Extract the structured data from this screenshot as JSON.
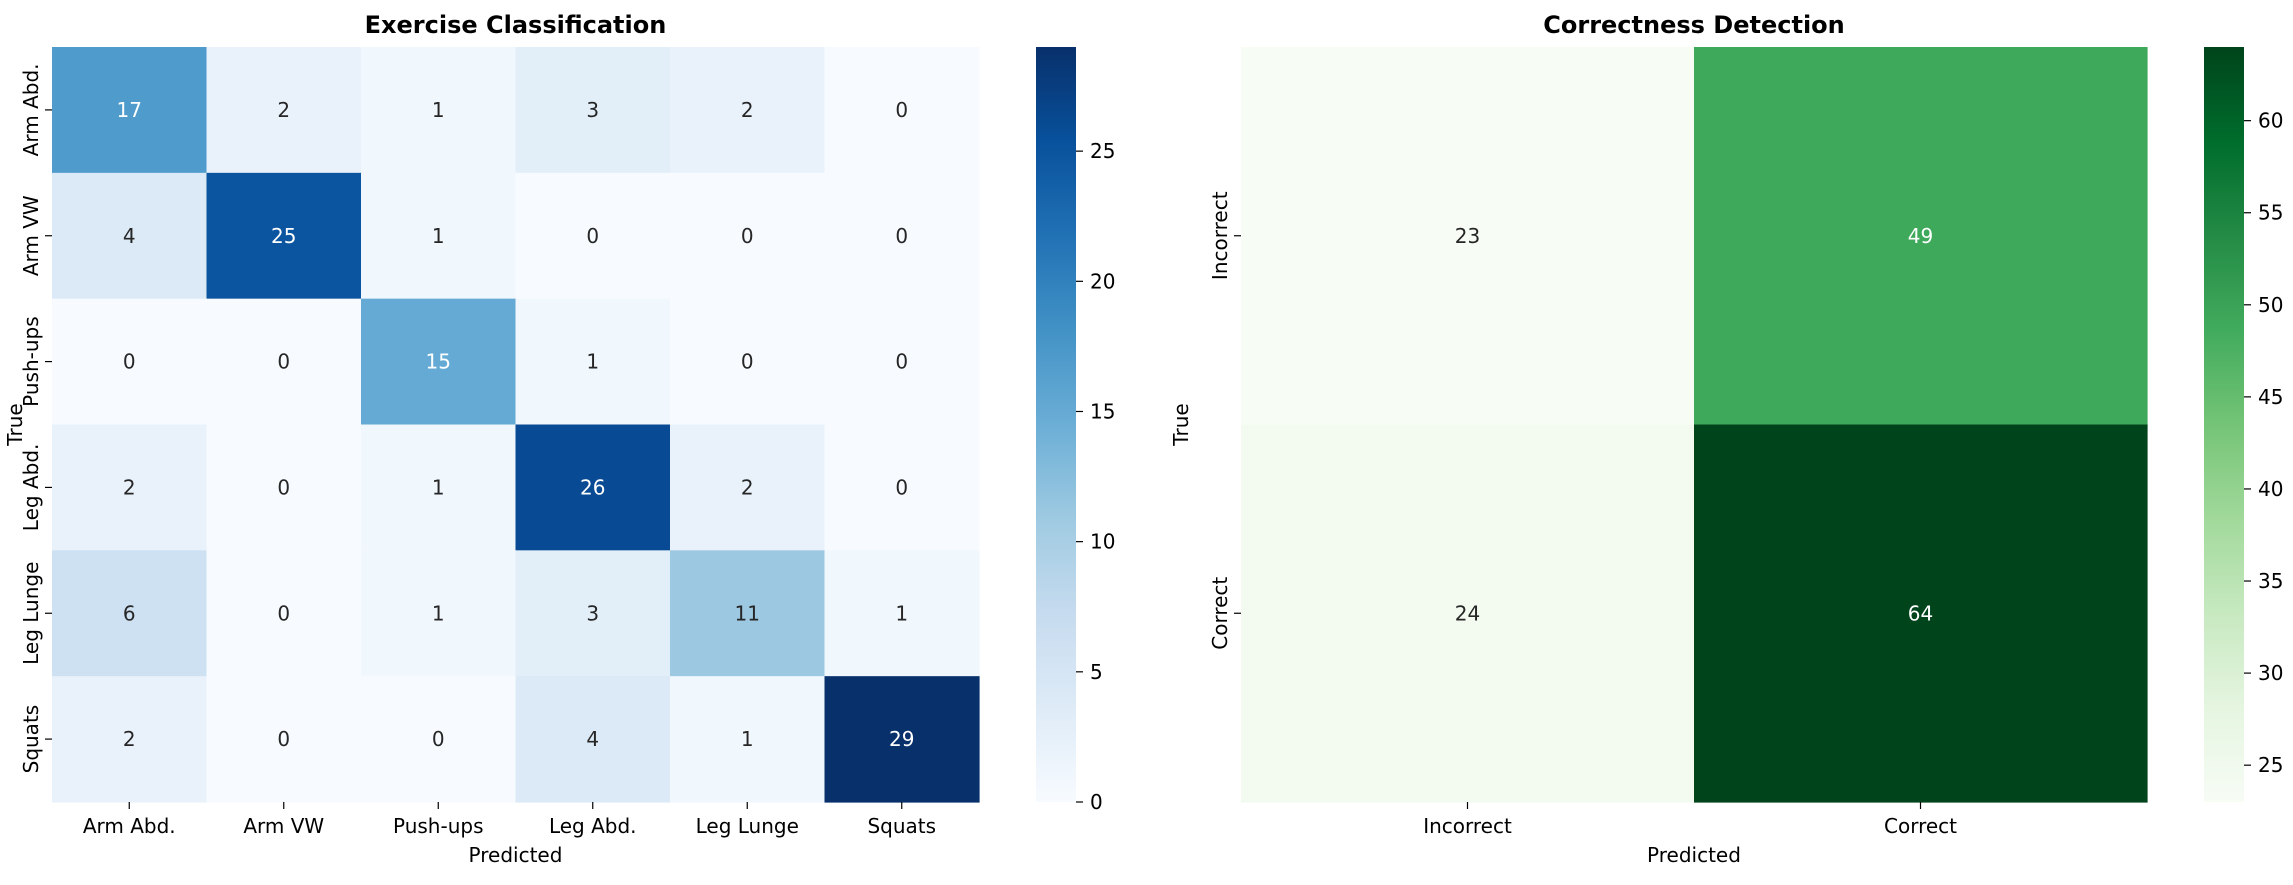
{
  "chart_data": [
    {
      "type": "heatmap",
      "title": "Exercise Classification",
      "xlabel": "Predicted",
      "ylabel": "True",
      "x_categories": [
        "Arm Abd.",
        "Arm VW",
        "Push-ups",
        "Leg Abd.",
        "Leg Lunge",
        "Squats"
      ],
      "y_categories": [
        "Arm Abd.",
        "Arm VW",
        "Push-ups",
        "Leg Abd.",
        "Leg Lunge",
        "Squats"
      ],
      "values": [
        [
          17,
          2,
          1,
          3,
          2,
          0
        ],
        [
          4,
          25,
          1,
          0,
          0,
          0
        ],
        [
          0,
          0,
          15,
          1,
          0,
          0
        ],
        [
          2,
          0,
          1,
          26,
          2,
          0
        ],
        [
          6,
          0,
          1,
          3,
          11,
          1
        ],
        [
          2,
          0,
          0,
          4,
          1,
          29
        ]
      ],
      "colormap": "Blues",
      "color_low": "#f7fbff",
      "color_high": "#08306b",
      "colorbar_range": [
        0,
        29
      ],
      "colorbar_ticks": [
        0,
        5,
        10,
        15,
        20,
        25
      ]
    },
    {
      "type": "heatmap",
      "title": "Correctness Detection",
      "xlabel": "Predicted",
      "ylabel": "True",
      "x_categories": [
        "Incorrect",
        "Correct"
      ],
      "y_categories": [
        "Incorrect",
        "Correct"
      ],
      "values": [
        [
          23,
          49
        ],
        [
          24,
          64
        ]
      ],
      "colormap": "Greens",
      "color_low": "#f7fcf5",
      "color_high": "#00441b",
      "colorbar_range": [
        23,
        64
      ],
      "colorbar_ticks": [
        25,
        30,
        35,
        40,
        45,
        50,
        55,
        60
      ]
    }
  ]
}
